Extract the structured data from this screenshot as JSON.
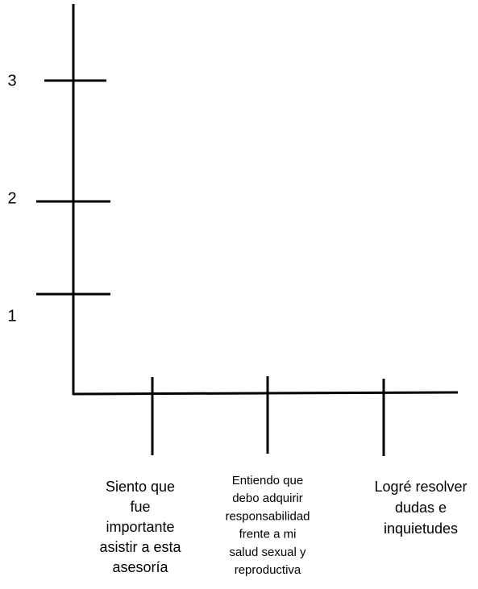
{
  "y_axis": {
    "ticks": [
      1,
      2,
      3
    ]
  },
  "x_axis": {
    "categories": [
      [
        "Siento que",
        "fue",
        "importante",
        "asistir a esta",
        "asesoría"
      ],
      [
        "Entiendo que",
        "debo adquirir",
        "responsabilidad",
        "frente a mi",
        "salud sexual y",
        "reproductiva"
      ],
      [
        "Logré resolver",
        "dudas e",
        "inquietudes"
      ]
    ]
  }
}
